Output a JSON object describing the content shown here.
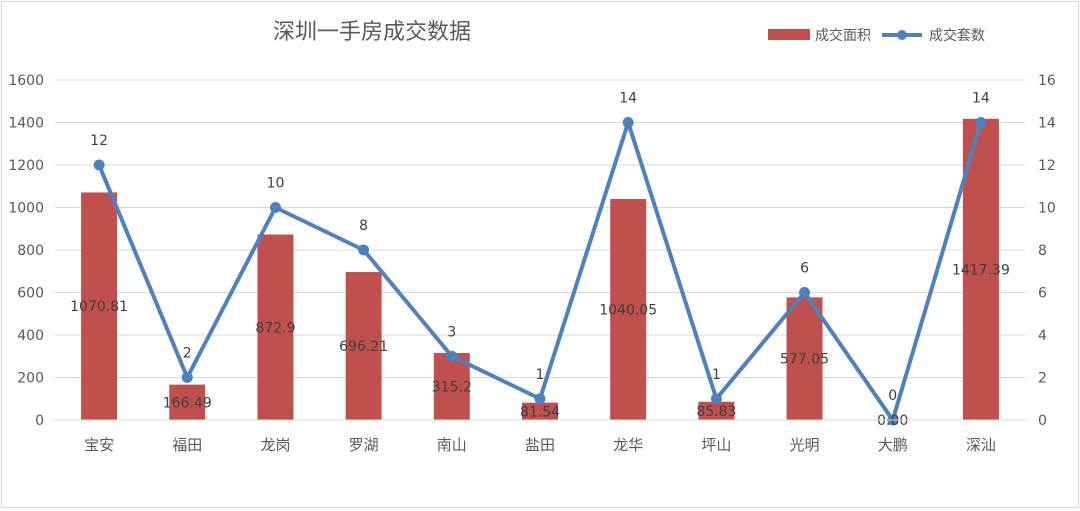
{
  "chart_data": {
    "type": "bar",
    "title": "深圳一手房成交数据",
    "categories": [
      "宝安",
      "福田",
      "龙岗",
      "罗湖",
      "南山",
      "盐田",
      "龙华",
      "坪山",
      "光明",
      "大鹏",
      "深汕"
    ],
    "series": [
      {
        "name": "成交面积",
        "type": "bar",
        "axis": "left",
        "color": "#c0504d",
        "values": [
          1070.81,
          166.49,
          872.9,
          696.21,
          315.2,
          81.54,
          1040.05,
          85.83,
          577.05,
          0.0,
          1417.39
        ],
        "labels": [
          "1070.81",
          "166.49",
          "872.9",
          "696.21",
          "315.2",
          "81.54",
          "1040.05",
          "85.83",
          "577.05",
          "0.00",
          "1417.39"
        ]
      },
      {
        "name": "成交套数",
        "type": "line",
        "axis": "right",
        "color": "#4f81bd",
        "values": [
          12,
          2,
          10,
          8,
          3,
          1,
          14,
          1,
          6,
          0,
          14
        ],
        "labels": [
          "12",
          "2",
          "10",
          "8",
          "3",
          "1",
          "14",
          "1",
          "6",
          "0",
          "14"
        ]
      }
    ],
    "y_left": {
      "min": 0,
      "max": 1600,
      "ticks": [
        "0",
        "200",
        "400",
        "600",
        "800",
        "1000",
        "1200",
        "1400",
        "1600"
      ]
    },
    "y_right": {
      "min": 0,
      "max": 16,
      "ticks": [
        "0",
        "2",
        "4",
        "6",
        "8",
        "10",
        "12",
        "14",
        "16"
      ]
    },
    "grid": true,
    "legend_position": "top-right"
  }
}
